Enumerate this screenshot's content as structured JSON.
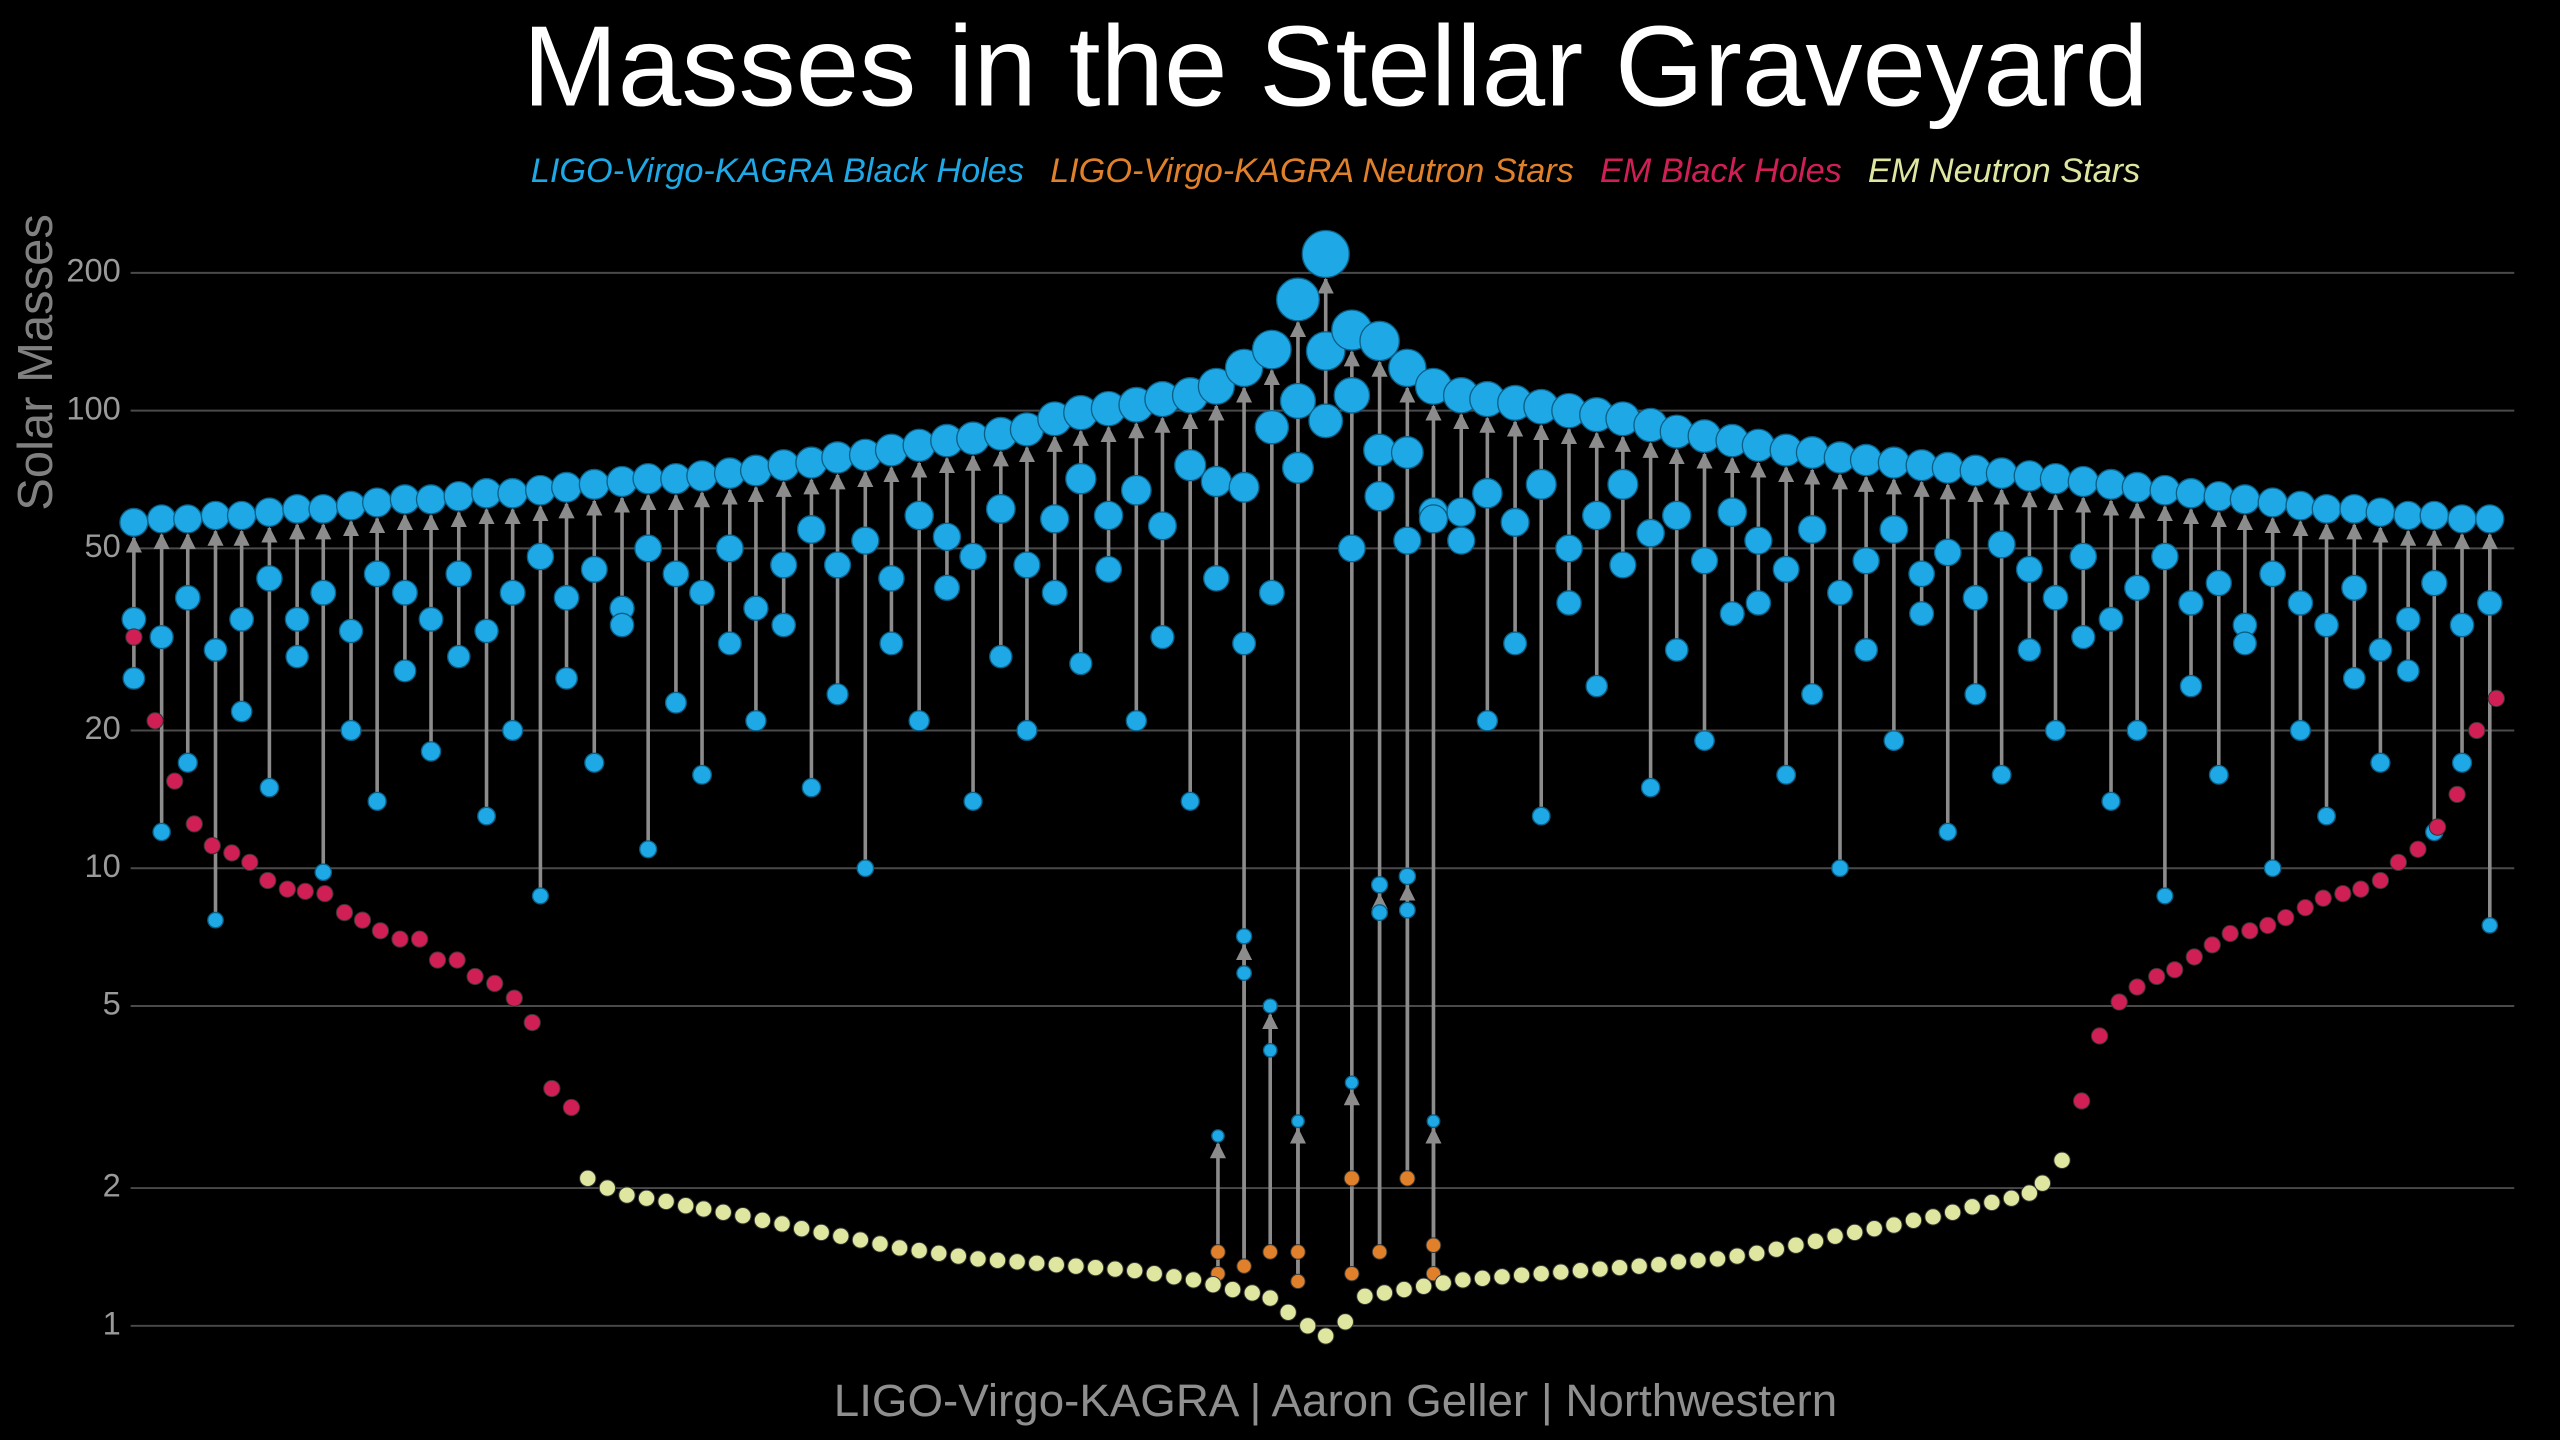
{
  "chart_data": {
    "type": "scatter",
    "title": "Masses in the Stellar Graveyard",
    "y_label": "Solar Masses",
    "credit": "LIGO-Virgo-KAGRA | Aaron Geller | Northwestern",
    "log_y": true,
    "grid": true,
    "xlim": [
      40,
      1545
    ],
    "ylim": [
      0.87,
      250
    ],
    "yticks": [
      1,
      2,
      5,
      10,
      20,
      50,
      100,
      200
    ],
    "series": [
      {
        "name": "LIGO-Virgo-KAGRA Black Holes",
        "color": "#1fa8e6",
        "x": [
          82,
          99,
          115,
          132,
          148,
          165,
          182,
          198,
          215,
          231,
          248,
          264,
          281,
          298,
          314,
          331,
          347,
          364,
          381,
          397,
          414,
          430,
          447,
          463,
          480,
          497,
          513,
          530,
          546,
          563,
          580,
          596,
          613,
          629,
          646,
          662,
          679,
          696,
          712,
          729,
          745,
          762,
          779,
          795,
          812,
          828,
          845,
          862,
          878,
          895,
          911,
          928,
          944,
          961,
          978,
          994,
          1011,
          1027,
          1044,
          1061,
          1077,
          1094,
          1110,
          1127,
          1143,
          1160,
          1177,
          1193,
          1210,
          1226,
          1243,
          1259,
          1276,
          1293,
          1309,
          1326,
          1342,
          1359,
          1375,
          1392,
          1409,
          1425,
          1442,
          1458,
          1475,
          1491,
          1508,
          1525,
          746,
          762,
          778,
          795,
          828,
          845,
          862,
          878
        ],
        "primary": [
          35,
          32,
          39,
          30,
          35,
          43,
          35,
          40,
          33,
          44,
          40,
          35,
          44,
          33,
          40,
          48,
          39,
          45,
          37,
          50,
          44,
          40,
          50,
          37,
          46,
          55,
          46,
          52,
          43,
          59,
          53,
          48,
          61,
          46,
          58,
          71,
          59,
          67,
          56,
          76,
          70,
          68,
          92,
          105,
          135,
          108,
          82,
          81,
          60,
          60,
          66,
          57,
          69,
          50,
          59,
          69,
          54,
          59,
          47,
          60,
          52,
          45,
          55,
          40,
          47,
          55,
          44,
          49,
          39,
          51,
          45,
          39,
          48,
          35,
          41,
          48,
          38,
          42,
          34,
          44,
          38,
          34,
          41,
          30,
          35,
          42,
          34,
          38,
          null,
          5.9,
          4.0,
          null,
          null,
          8.0,
          8.1,
          null
        ],
        "secondary": [
          26,
          12,
          17,
          7.7,
          22,
          15,
          29,
          9.8,
          20,
          14,
          27,
          18,
          29,
          13,
          20,
          8.7,
          26,
          17,
          34,
          11,
          23,
          16,
          31,
          21,
          34,
          15,
          24,
          10,
          31,
          21,
          41,
          14,
          29,
          20,
          40,
          28,
          45,
          21,
          32,
          14,
          43,
          31,
          40,
          75,
          95,
          50,
          65,
          52,
          58,
          52,
          21,
          31,
          13,
          38,
          25,
          46,
          15,
          30,
          19,
          36,
          38,
          16,
          24,
          10,
          30,
          19,
          36,
          12,
          24,
          16,
          30,
          20,
          32,
          14,
          20,
          8.7,
          25,
          16,
          31,
          10,
          20,
          13,
          26,
          17,
          27,
          12,
          17,
          7.5,
          null,
          null,
          null,
          null,
          null,
          null,
          null,
          null
        ],
        "remnant": [
          57,
          58,
          58,
          59,
          59,
          60,
          61,
          61,
          62,
          63,
          64,
          64,
          65,
          66,
          66,
          67,
          68,
          69,
          70,
          71,
          71,
          72,
          73,
          74,
          76,
          77,
          79,
          80,
          82,
          84,
          86,
          87,
          89,
          91,
          96,
          99,
          101,
          103,
          106,
          108,
          113,
          124,
          136,
          175,
          220,
          150,
          142,
          124,
          113,
          108,
          106,
          104,
          102,
          100,
          98,
          96,
          93,
          90,
          88,
          86,
          84,
          82,
          81,
          79,
          78,
          77,
          76,
          75,
          74,
          73,
          72,
          71,
          70,
          69,
          68,
          67,
          66,
          65,
          64,
          63,
          62,
          61,
          61,
          60,
          59,
          59,
          58,
          58,
          2.6,
          7.1,
          5.0,
          2.8,
          3.4,
          9.2,
          9.6,
          2.8
        ]
      },
      {
        "name": "LIGO-Virgo-KAGRA Neutron Stars",
        "color": "#e0802a",
        "x": [
          746,
          746,
          762,
          778,
          795,
          795,
          828,
          828,
          845,
          862,
          878,
          878
        ],
        "values": [
          1.45,
          1.3,
          1.35,
          1.45,
          1.45,
          1.25,
          2.1,
          1.3,
          1.45,
          2.1,
          1.5,
          1.3
        ]
      },
      {
        "name": "EM Black Holes",
        "color": "#d01f55",
        "x": [
          82,
          95,
          107,
          119,
          130,
          142,
          153,
          164,
          176,
          187,
          199,
          211,
          222,
          233,
          245,
          257,
          268,
          280,
          291,
          303,
          315,
          326,
          338,
          350,
          1275,
          1286,
          1298,
          1309,
          1321,
          1332,
          1344,
          1355,
          1366,
          1378,
          1389,
          1400,
          1412,
          1423,
          1435,
          1446,
          1458,
          1469,
          1481,
          1493,
          1505,
          1517,
          1529
        ],
        "values": [
          32,
          21,
          15.5,
          12.5,
          11.2,
          10.8,
          10.3,
          9.4,
          9,
          8.9,
          8.8,
          8,
          7.7,
          7.3,
          7,
          7,
          6.3,
          6.3,
          5.8,
          5.6,
          5.2,
          4.6,
          3.3,
          3.0,
          3.1,
          4.3,
          5.1,
          5.5,
          5.8,
          6,
          6.4,
          6.8,
          7.2,
          7.3,
          7.5,
          7.8,
          8.2,
          8.6,
          8.8,
          9,
          9.4,
          10.3,
          11,
          12.3,
          14.5,
          20,
          23.5
        ]
      },
      {
        "name": "EM Neutron Stars",
        "color": "#dfe6a0",
        "x": [
          360,
          372,
          384,
          396,
          408,
          420,
          431,
          443,
          455,
          467,
          479,
          491,
          503,
          515,
          527,
          539,
          551,
          563,
          575,
          587,
          599,
          611,
          623,
          635,
          647,
          659,
          671,
          683,
          695,
          707,
          719,
          731,
          743,
          755,
          767,
          778,
          789,
          801,
          812,
          824,
          836,
          848,
          860,
          872,
          884,
          896,
          908,
          920,
          932,
          944,
          956,
          968,
          980,
          992,
          1004,
          1016,
          1028,
          1040,
          1052,
          1064,
          1076,
          1088,
          1100,
          1112,
          1124,
          1136,
          1148,
          1160,
          1172,
          1184,
          1196,
          1208,
          1220,
          1232,
          1243,
          1251,
          1263
        ],
        "values": [
          2.1,
          2.0,
          1.93,
          1.9,
          1.87,
          1.83,
          1.8,
          1.77,
          1.74,
          1.7,
          1.67,
          1.63,
          1.6,
          1.57,
          1.54,
          1.51,
          1.48,
          1.46,
          1.44,
          1.42,
          1.4,
          1.39,
          1.38,
          1.37,
          1.36,
          1.35,
          1.34,
          1.33,
          1.32,
          1.3,
          1.28,
          1.26,
          1.23,
          1.2,
          1.18,
          1.15,
          1.07,
          1.0,
          0.95,
          1.02,
          1.16,
          1.18,
          1.2,
          1.22,
          1.24,
          1.26,
          1.27,
          1.28,
          1.29,
          1.3,
          1.31,
          1.32,
          1.33,
          1.34,
          1.35,
          1.36,
          1.38,
          1.39,
          1.4,
          1.42,
          1.44,
          1.47,
          1.5,
          1.53,
          1.57,
          1.6,
          1.63,
          1.66,
          1.7,
          1.73,
          1.77,
          1.82,
          1.86,
          1.9,
          1.95,
          2.05,
          2.3
        ]
      }
    ]
  }
}
